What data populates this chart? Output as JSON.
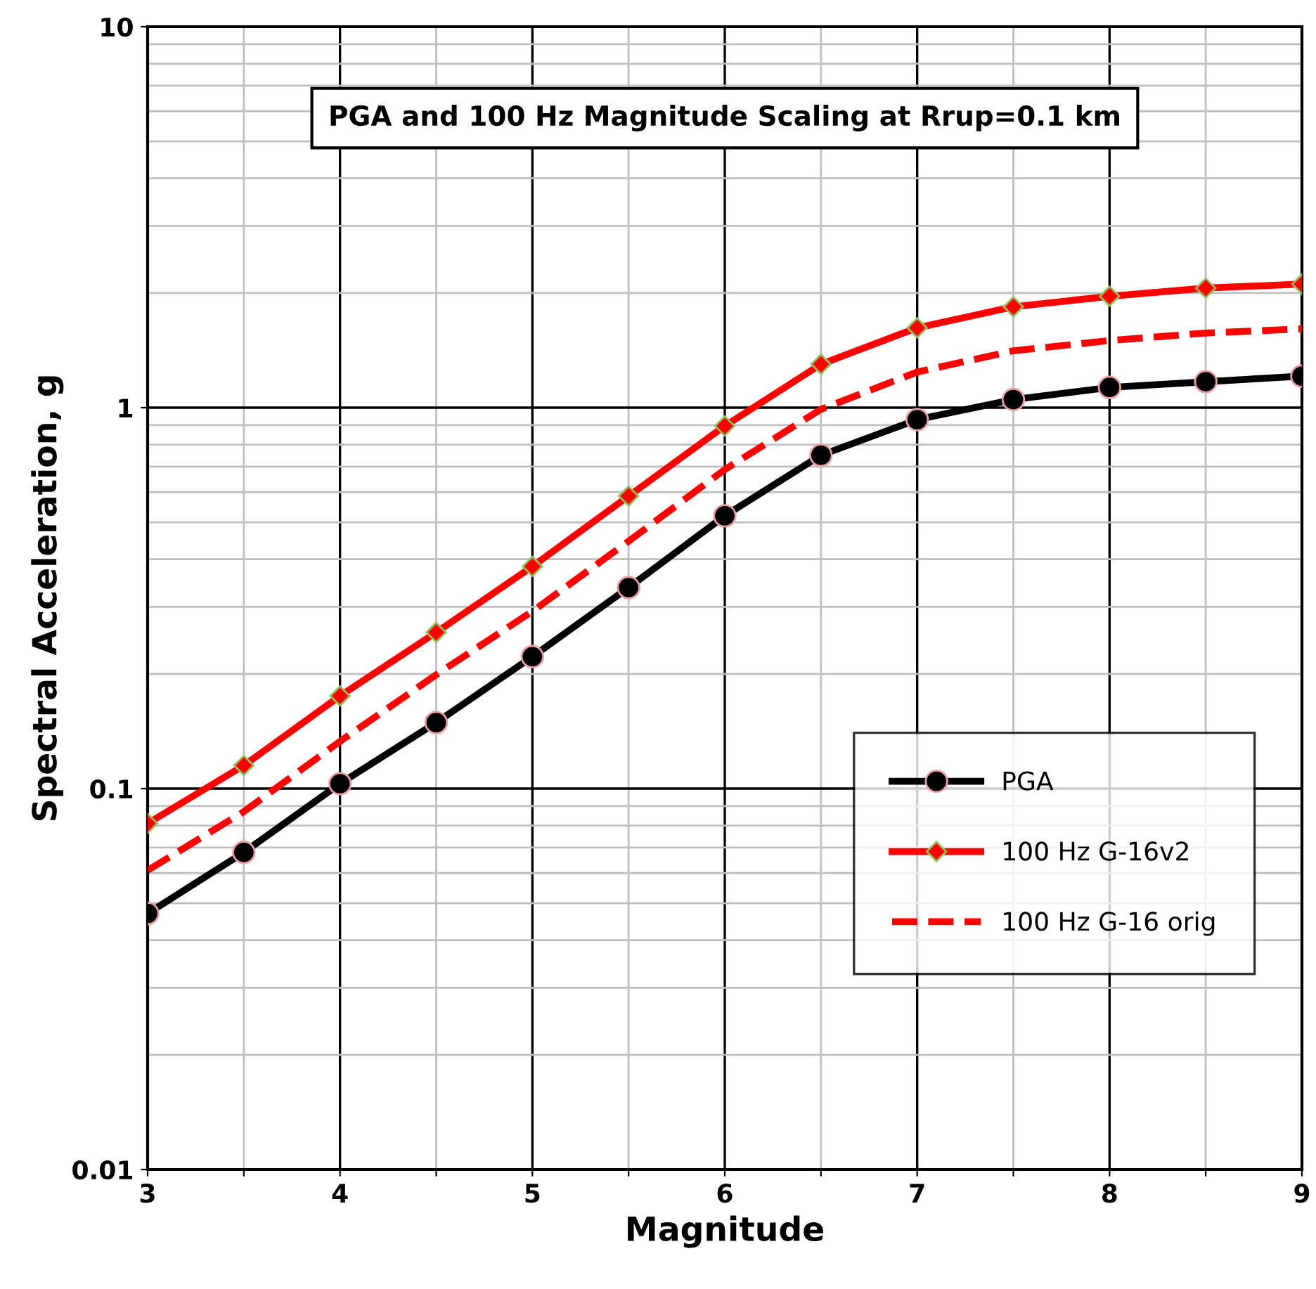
{
  "chart_data": {
    "type": "line",
    "title": "PGA and 100 Hz Magnitude Scaling at Rrup=0.1 km",
    "xlabel": "Magnitude",
    "ylabel": "Spectral Acceleration, g",
    "x": [
      3,
      3.5,
      4,
      4.5,
      5,
      5.5,
      6,
      6.5,
      7,
      7.5,
      8,
      8.5,
      9
    ],
    "series": [
      {
        "name": "PGA",
        "color": "#000000",
        "marker": "circle",
        "line_style": "solid",
        "values": [
          0.047,
          0.068,
          0.103,
          0.149,
          0.222,
          0.337,
          0.52,
          0.75,
          0.93,
          1.05,
          1.13,
          1.17,
          1.21
        ]
      },
      {
        "name": "100 Hz G-16v2",
        "color": "#ff0000",
        "marker": "diamond",
        "line_style": "solid",
        "values": [
          0.081,
          0.115,
          0.175,
          0.257,
          0.383,
          0.586,
          0.895,
          1.3,
          1.62,
          1.84,
          1.96,
          2.06,
          2.11
        ]
      },
      {
        "name": "100 Hz G-16 orig",
        "color": "#ff0000",
        "marker": "none",
        "line_style": "dashed",
        "values": [
          0.061,
          0.087,
          0.133,
          0.199,
          0.292,
          0.446,
          0.688,
          0.99,
          1.24,
          1.41,
          1.5,
          1.57,
          1.61
        ]
      }
    ],
    "log": "y",
    "xlim": [
      3,
      9
    ],
    "ylim": [
      0.01,
      10
    ],
    "xticks": [
      3,
      {
        "value": 3.5,
        "label": null
      },
      4,
      {
        "value": 4.5,
        "label": null
      },
      5,
      {
        "value": 5.5,
        "label": null
      },
      6,
      {
        "value": 6.5,
        "label": null
      },
      7,
      {
        "value": 7.5,
        "label": null
      },
      8,
      {
        "value": 8.5,
        "label": null
      },
      9
    ],
    "yticks": [
      0.01,
      0.1,
      1,
      10
    ],
    "grid": true,
    "legend": "bottom right"
  }
}
